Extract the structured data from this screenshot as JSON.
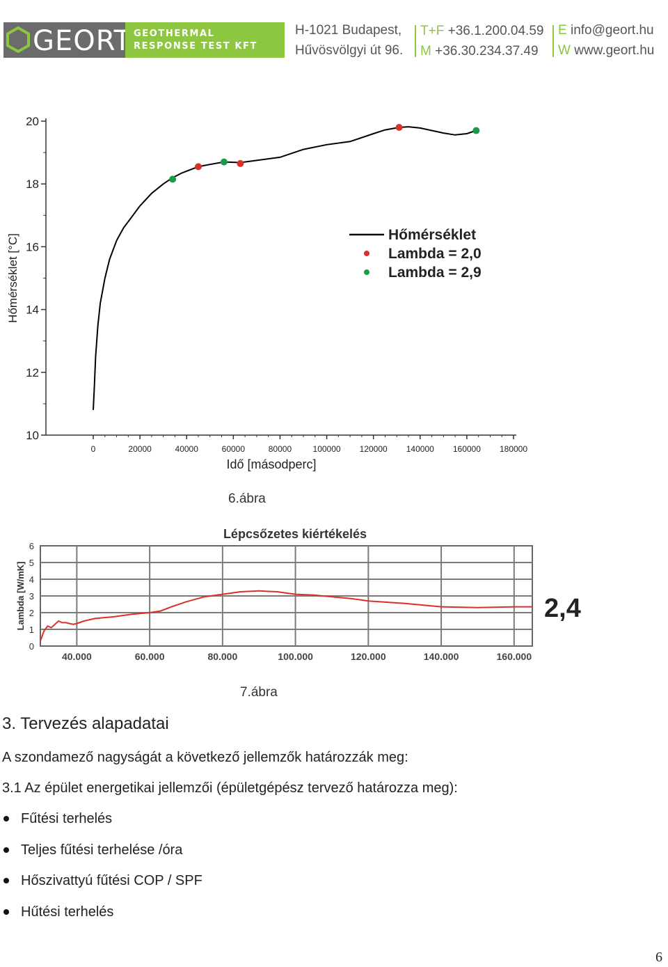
{
  "header": {
    "logo_text": "GEORT",
    "tagline_line1": "GEOTHERMAL",
    "tagline_line2": "RESPONSE TEST KFT",
    "address_line1": "H-1021 Budapest,",
    "address_line2": "Hűvösvölgyi út 96.",
    "phone_label1": "T+F",
    "phone_value1": "+36.1.200.04.59",
    "phone_label2": "M",
    "phone_value2": "+36.30.234.37.49",
    "email_label": "E",
    "email_value": "info@geort.hu",
    "web_label": "W",
    "web_value": "www.geort.hu",
    "colors": {
      "brand_green": "#8dc63f",
      "brand_gray": "#6b6b6b"
    }
  },
  "chart_data": [
    {
      "type": "line",
      "title": "",
      "xlabel": "Idő [másodperc]",
      "ylabel": "Hőmérséklet [°C]",
      "xlim": [
        0,
        180000
      ],
      "ylim": [
        10,
        20
      ],
      "x_ticks": [
        0,
        20000,
        40000,
        60000,
        80000,
        100000,
        120000,
        140000,
        160000,
        180000
      ],
      "x_tick_labels": [
        "0",
        "20000",
        "40000",
        "60000",
        "80000",
        "100000",
        "120000",
        "140000",
        "160000",
        "180000"
      ],
      "y_ticks": [
        10,
        12,
        14,
        16,
        18,
        20
      ],
      "y_tick_labels": [
        "10",
        "12",
        "14",
        "16",
        "18",
        "20"
      ],
      "legend_position": "right",
      "series": [
        {
          "name": "Hőmérséklet",
          "color": "#000000",
          "x": [
            0,
            500,
            1000,
            2000,
            3000,
            5000,
            7000,
            10000,
            13000,
            16000,
            20000,
            25000,
            30000,
            34000,
            38000,
            45000,
            50000,
            56000,
            63000,
            70000,
            80000,
            90000,
            100000,
            110000,
            120000,
            125000,
            131000,
            135000,
            140000,
            145000,
            150000,
            155000,
            160000,
            164000
          ],
          "y": [
            10.8,
            11.6,
            12.5,
            13.5,
            14.2,
            15.0,
            15.6,
            16.2,
            16.6,
            16.9,
            17.3,
            17.7,
            18.0,
            18.2,
            18.35,
            18.55,
            18.62,
            18.7,
            18.68,
            18.75,
            18.85,
            19.1,
            19.25,
            19.35,
            19.6,
            19.72,
            19.8,
            19.82,
            19.78,
            19.7,
            19.62,
            19.56,
            19.6,
            19.7
          ]
        },
        {
          "name": "Lambda = 2,0",
          "color": "#d9302c",
          "x": [
            45000,
            63000,
            131000
          ],
          "y": [
            18.55,
            18.65,
            19.8
          ]
        },
        {
          "name": "Lambda = 2,9",
          "color": "#1a9b4a",
          "x": [
            34000,
            56000,
            164000
          ],
          "y": [
            18.15,
            18.7,
            19.7
          ]
        }
      ]
    },
    {
      "type": "line",
      "title": "Lépcsőzetes kiértékelés",
      "xlabel": "",
      "ylabel": "Lambda [W/mK]",
      "xlim": [
        30000,
        165000
      ],
      "ylim": [
        0,
        6
      ],
      "x_ticks": [
        40000,
        60000,
        80000,
        100000,
        120000,
        140000,
        160000
      ],
      "x_tick_labels": [
        "40.000",
        "60.000",
        "80.000",
        "100.000",
        "120.000",
        "140.000",
        "160.000"
      ],
      "y_ticks": [
        0,
        1,
        2,
        3,
        4,
        5,
        6
      ],
      "y_tick_labels": [
        "0",
        "1",
        "2",
        "3",
        "4",
        "5",
        "6"
      ],
      "grid": true,
      "annotation": "2,4",
      "series": [
        {
          "color": "#d9302c",
          "x": [
            30000,
            31000,
            32000,
            33000,
            34000,
            35000,
            36000,
            37000,
            39000,
            40000,
            42000,
            45000,
            50000,
            55000,
            60000,
            63000,
            66000,
            70000,
            75000,
            80000,
            85000,
            90000,
            95000,
            100000,
            105000,
            110000,
            115000,
            120000,
            130000,
            140000,
            150000,
            160000,
            165000
          ],
          "y": [
            0.3,
            0.9,
            1.2,
            1.1,
            1.3,
            1.5,
            1.4,
            1.4,
            1.3,
            1.35,
            1.5,
            1.65,
            1.75,
            1.9,
            2.0,
            2.1,
            2.35,
            2.65,
            2.95,
            3.1,
            3.25,
            3.3,
            3.25,
            3.1,
            3.05,
            2.95,
            2.85,
            2.7,
            2.55,
            2.35,
            2.3,
            2.35,
            2.35
          ]
        }
      ]
    }
  ],
  "captions": {
    "fig6": "6.ábra",
    "fig7": "7.ábra"
  },
  "body": {
    "section_title": "3. Tervezés alapadatai",
    "para1": "A szondamező nagyságát a következő jellemzők határozzák meg:",
    "para2": "3.1 Az épület energetikai jellemzői (épületgépész tervező határozza meg):",
    "bullets": [
      "Fűtési terhelés",
      "Teljes fűtési terhelése /óra",
      "Hőszivattyú fűtési COP / SPF",
      "Hűtési terhelés"
    ]
  },
  "page_number": "6"
}
